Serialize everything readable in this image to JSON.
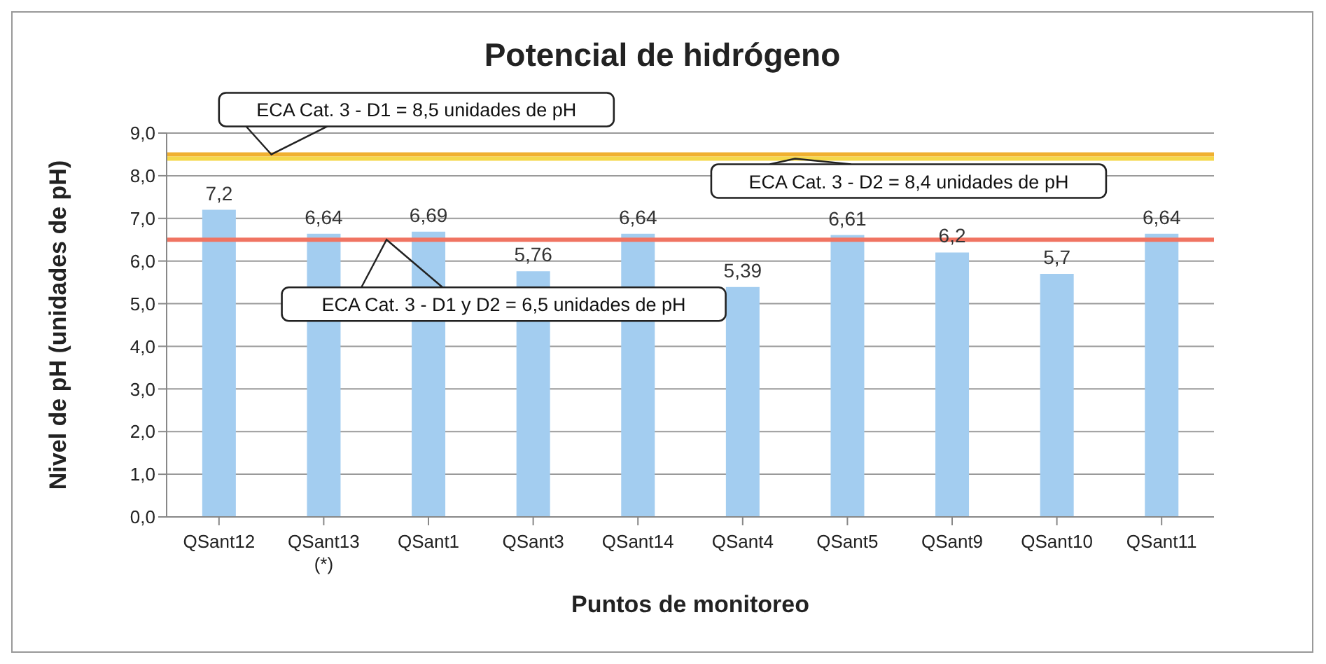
{
  "chart_data": {
    "type": "bar",
    "title": "Potencial de hidrógeno",
    "xlabel": "Puntos de monitoreo",
    "ylabel": "Nivel de pH (unidades de pH)",
    "categories": [
      "QSant12",
      "QSant13\n(*)",
      "QSant1",
      "QSant3",
      "QSant14",
      "QSant4",
      "QSant5",
      "QSant9",
      "QSant10",
      "QSant11"
    ],
    "values": [
      7.2,
      6.64,
      6.69,
      5.76,
      6.64,
      5.39,
      6.61,
      6.2,
      5.7,
      6.64
    ],
    "value_labels": [
      "7,2",
      "6,64",
      "6,69",
      "5,76",
      "6,64",
      "5,39",
      "6,61",
      "6,2",
      "5,7",
      "6,64"
    ],
    "color": "#a3cdf0",
    "ylim": [
      0,
      9
    ],
    "yticks": [
      {
        "value": 0,
        "label": "0,0"
      },
      {
        "value": 1,
        "label": "1,0"
      },
      {
        "value": 2,
        "label": "2,0"
      },
      {
        "value": 3,
        "label": "3,0"
      },
      {
        "value": 4,
        "label": "4,0"
      },
      {
        "value": 5,
        "label": "5,0"
      },
      {
        "value": 6,
        "label": "6,0"
      },
      {
        "value": 7,
        "label": "7,0"
      },
      {
        "value": 8,
        "label": "8,0"
      },
      {
        "value": 9,
        "label": "9,0"
      }
    ],
    "grid": "y",
    "ref_lines": [
      {
        "axis": "y",
        "value": 8.5,
        "label": "ECA Cat. 3 - D1 = 8,5 unidades de pH",
        "color": "#f0b030"
      },
      {
        "axis": "y",
        "value": 8.4,
        "label": "ECA Cat. 3 - D2 = 8,4 unidades de pH",
        "color": "#f5d84a"
      },
      {
        "axis": "y",
        "value": 6.5,
        "label": "ECA Cat. 3 - D1 y D2 = 6,5 unidades de pH",
        "color": "#f07462"
      }
    ]
  }
}
